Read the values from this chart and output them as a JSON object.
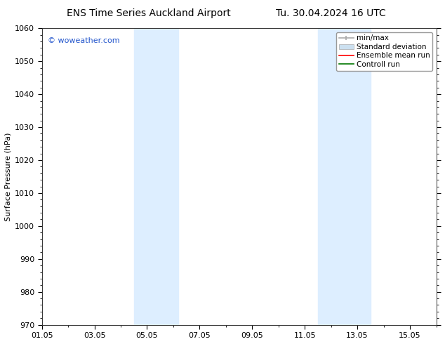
{
  "title_left": "ENS Time Series Auckland Airport",
  "title_right": "Tu. 30.04.2024 16 UTC",
  "ylabel": "Surface Pressure (hPa)",
  "ylim": [
    970,
    1060
  ],
  "yticks": [
    970,
    980,
    990,
    1000,
    1010,
    1020,
    1030,
    1040,
    1050,
    1060
  ],
  "xtick_labels": [
    "01.05",
    "03.05",
    "05.05",
    "07.05",
    "09.05",
    "11.05",
    "13.05",
    "15.05"
  ],
  "xtick_positions": [
    0,
    2,
    4,
    6,
    8,
    10,
    12,
    14
  ],
  "xlim": [
    0,
    15
  ],
  "watermark": "© woweather.com",
  "watermark_color": "#2255cc",
  "shaded_bands": [
    {
      "x_start": 3.5,
      "x_end": 5.2
    },
    {
      "x_start": 10.5,
      "x_end": 12.5
    }
  ],
  "shaded_color": "#ddeeff",
  "legend_items": [
    {
      "label": "min/max",
      "color": "#aaaaaa",
      "type": "errorbar"
    },
    {
      "label": "Standard deviation",
      "color": "#cce0f0",
      "type": "bar"
    },
    {
      "label": "Ensemble mean run",
      "color": "#ff0000",
      "type": "line"
    },
    {
      "label": "Controll run",
      "color": "#007700",
      "type": "line"
    }
  ],
  "bg_color": "#ffffff",
  "spine_color": "#333333",
  "title_fontsize": 10,
  "axis_label_fontsize": 8,
  "tick_fontsize": 8,
  "legend_fontsize": 7.5
}
